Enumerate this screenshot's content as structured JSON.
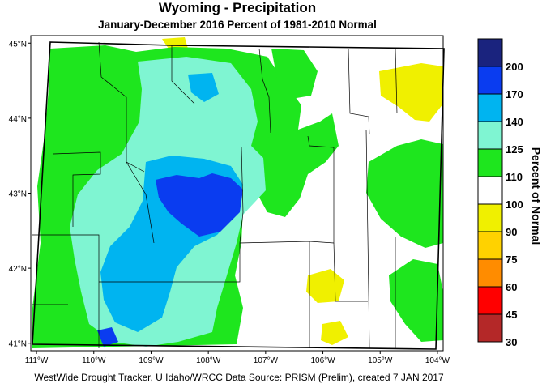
{
  "title": "Wyoming - Precipitation",
  "subtitle": "January-December 2016  Percent of 1981-2010 Normal",
  "footer": "WestWide Drought Tracker, U Idaho/WRCC Data Source: PRISM (Prelim), created  7 JAN 2017",
  "map": {
    "lon_range": [
      -111.1,
      -103.9
    ],
    "lat_range": [
      40.9,
      45.1
    ],
    "lon_ticks": [
      {
        "value": -111,
        "label": "111°W"
      },
      {
        "value": -110,
        "label": "110°W"
      },
      {
        "value": -109,
        "label": "109°W"
      },
      {
        "value": -108,
        "label": "108°W"
      },
      {
        "value": -107,
        "label": "107°W"
      },
      {
        "value": -106,
        "label": "106°W"
      },
      {
        "value": -105,
        "label": "105°W"
      },
      {
        "value": -104,
        "label": "104°W"
      }
    ],
    "lat_ticks": [
      {
        "value": 45,
        "label": "45°N"
      },
      {
        "value": 44,
        "label": "44°N"
      },
      {
        "value": 43,
        "label": "43°N"
      },
      {
        "value": 42,
        "label": "42°N"
      },
      {
        "value": 41,
        "label": "41°N"
      }
    ]
  },
  "legend": {
    "title": "Percent of Normal",
    "labels": [
      "200",
      "170",
      "140",
      "125",
      "110",
      "100",
      "90",
      "75",
      "60",
      "45",
      "30"
    ],
    "colors": [
      "#1a237e",
      "#0a3cf0",
      "#00b4f0",
      "#7ff5d2",
      "#1ee61e",
      "#ffffff",
      "#f0f000",
      "#ffd200",
      "#ff8c00",
      "#ff0000",
      "#b42828"
    ]
  }
}
